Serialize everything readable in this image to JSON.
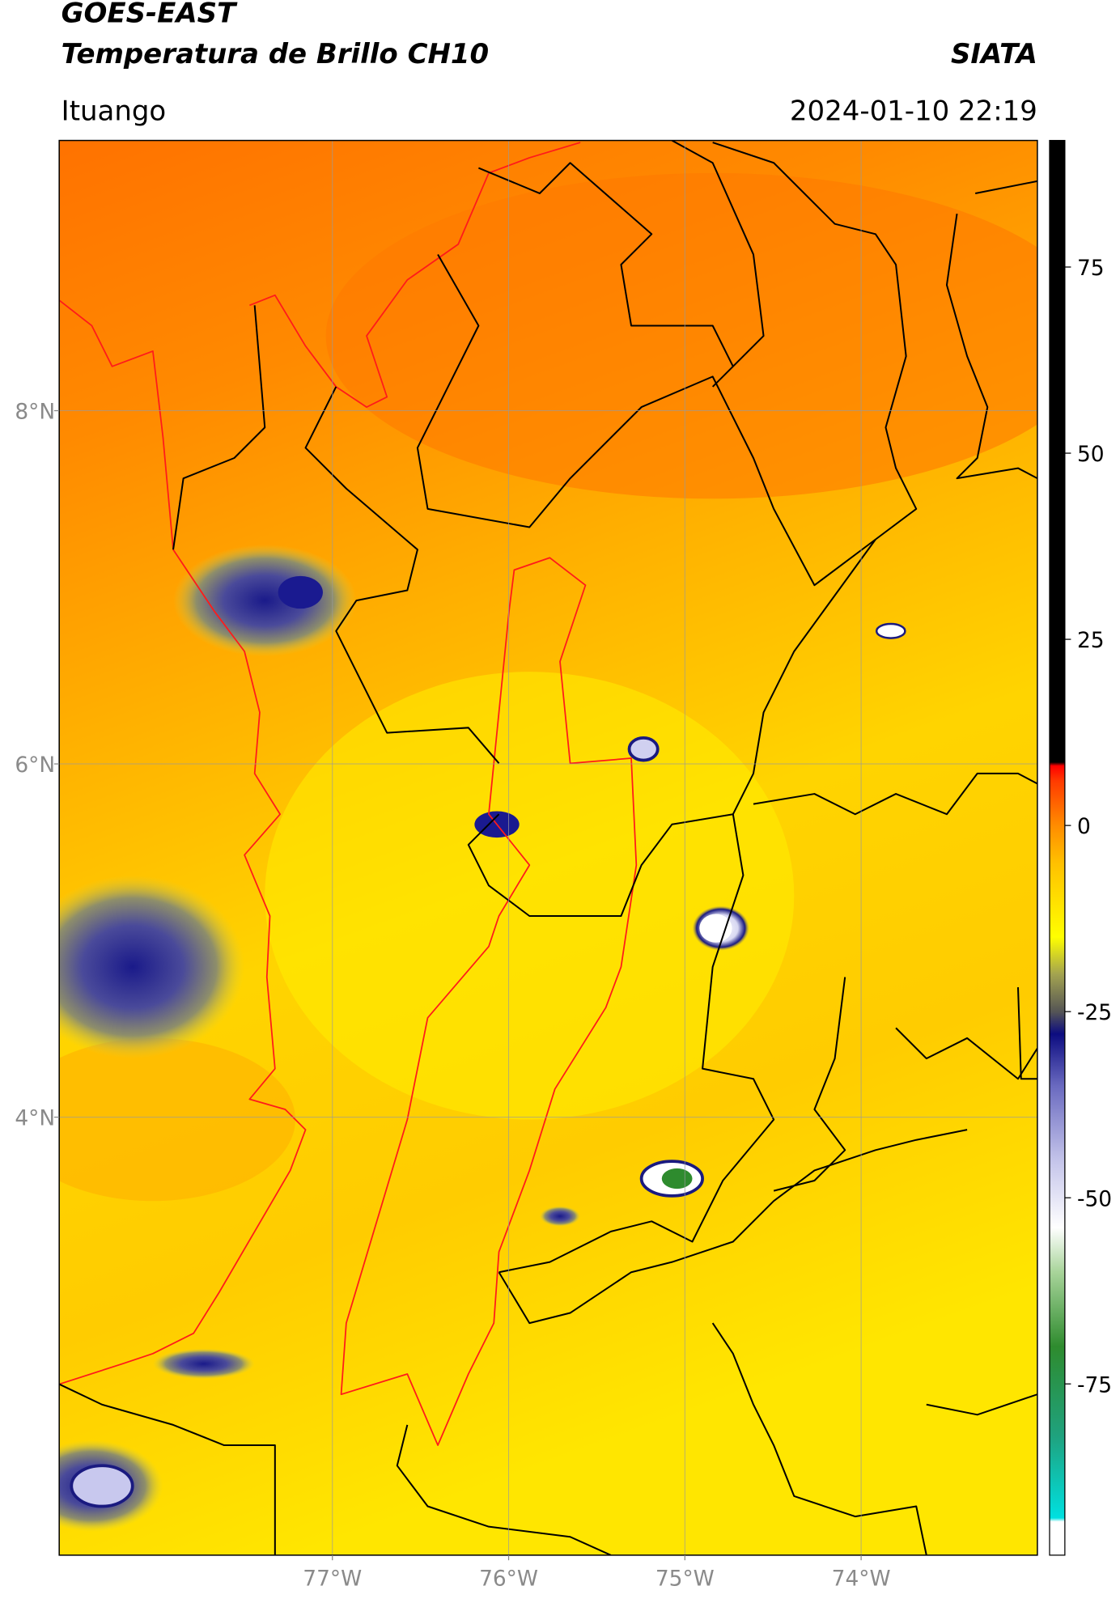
{
  "header": {
    "title_line1": "GOES-EAST",
    "title_line2": "Temperatura de Brillo CH10",
    "source": "SIATA",
    "location": "Ituango",
    "timestamp": "2024-01-10 22:19"
  },
  "map": {
    "xlim": [
      -78.55,
      -73.0
    ],
    "ylim": [
      1.52,
      9.53
    ],
    "xticks": [
      {
        "value": -77,
        "label": "77°W"
      },
      {
        "value": -76,
        "label": "76°W"
      },
      {
        "value": -75,
        "label": "75°W"
      },
      {
        "value": -74,
        "label": "74°W"
      }
    ],
    "yticks": [
      {
        "value": 8,
        "label": "8°N"
      },
      {
        "value": 6,
        "label": "6°N"
      },
      {
        "value": 4,
        "label": "4°N"
      }
    ],
    "grid": true
  },
  "colorbar": {
    "lim": [
      -98,
      92
    ],
    "ticks": [
      75,
      50,
      25,
      0,
      -25,
      -50,
      -75
    ],
    "colormap": [
      {
        "value": -98,
        "color": "#ffffff"
      },
      {
        "value": -93.5,
        "color": "#ffffff"
      },
      {
        "value": -93,
        "color": "#00e0e0"
      },
      {
        "value": -82,
        "color": "#1fa27e"
      },
      {
        "value": -70,
        "color": "#2e8b2e"
      },
      {
        "value": -60,
        "color": "#a8d49a"
      },
      {
        "value": -54,
        "color": "#ffffff"
      },
      {
        "value": -45,
        "color": "#c4c4ea"
      },
      {
        "value": -35,
        "color": "#6a6ac0"
      },
      {
        "value": -28,
        "color": "#0c0c80"
      },
      {
        "value": -25,
        "color": "#555555"
      },
      {
        "value": -20,
        "color": "#a3a350"
      },
      {
        "value": -15,
        "color": "#ffff00"
      },
      {
        "value": -5,
        "color": "#ffc000"
      },
      {
        "value": 0,
        "color": "#ff8c00"
      },
      {
        "value": 6,
        "color": "#ff3a00"
      },
      {
        "value": 8,
        "color": "#ff0000"
      },
      {
        "value": 8.5,
        "color": "#000000"
      },
      {
        "value": 92,
        "color": "#000000"
      }
    ]
  }
}
